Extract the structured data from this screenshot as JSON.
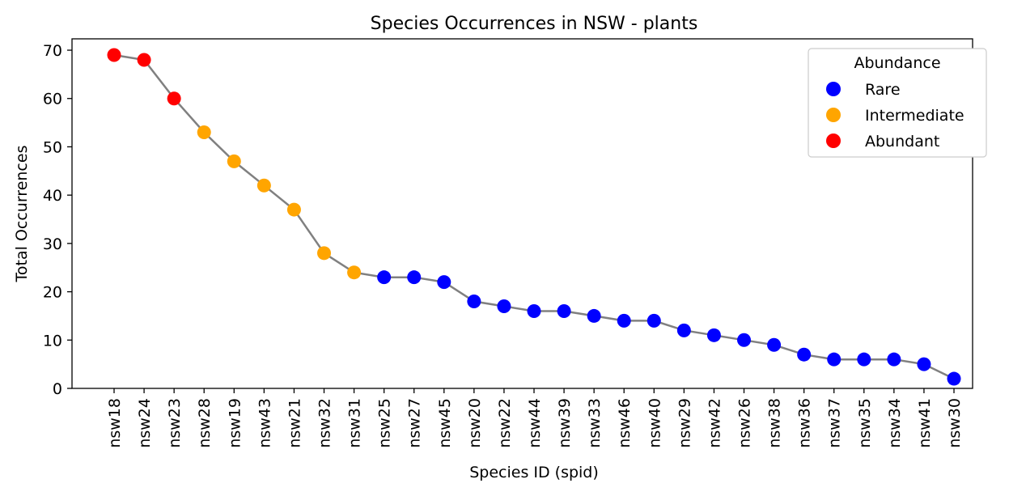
{
  "chart_data": {
    "type": "line",
    "title": "Species Occurrences in NSW - plants",
    "xlabel": "Species ID (spid)",
    "ylabel": "Total Occurrences",
    "ylim": [
      0,
      72.35
    ],
    "yticks": [
      0,
      10,
      20,
      30,
      40,
      50,
      60,
      70
    ],
    "grid": false,
    "line_color": "#808080",
    "categories": [
      "nsw18",
      "nsw24",
      "nsw23",
      "nsw28",
      "nsw19",
      "nsw43",
      "nsw21",
      "nsw32",
      "nsw31",
      "nsw25",
      "nsw27",
      "nsw45",
      "nsw20",
      "nsw22",
      "nsw44",
      "nsw39",
      "nsw33",
      "nsw46",
      "nsw40",
      "nsw29",
      "nsw42",
      "nsw26",
      "nsw38",
      "nsw36",
      "nsw37",
      "nsw35",
      "nsw34",
      "nsw41",
      "nsw30"
    ],
    "values": [
      69,
      68,
      60,
      53,
      47,
      42,
      37,
      28,
      24,
      23,
      23,
      22,
      18,
      17,
      16,
      16,
      15,
      14,
      14,
      12,
      11,
      10,
      9,
      7,
      6,
      6,
      6,
      5,
      2
    ],
    "abundance": [
      "Abundant",
      "Abundant",
      "Abundant",
      "Intermediate",
      "Intermediate",
      "Intermediate",
      "Intermediate",
      "Intermediate",
      "Intermediate",
      "Rare",
      "Rare",
      "Rare",
      "Rare",
      "Rare",
      "Rare",
      "Rare",
      "Rare",
      "Rare",
      "Rare",
      "Rare",
      "Rare",
      "Rare",
      "Rare",
      "Rare",
      "Rare",
      "Rare",
      "Rare",
      "Rare",
      "Rare"
    ],
    "legend": {
      "title": "Abundance",
      "position": "top-right",
      "entries": [
        {
          "label": "Rare",
          "color": "#0000ff"
        },
        {
          "label": "Intermediate",
          "color": "#ffa500"
        },
        {
          "label": "Abundant",
          "color": "#ff0000"
        }
      ]
    }
  }
}
